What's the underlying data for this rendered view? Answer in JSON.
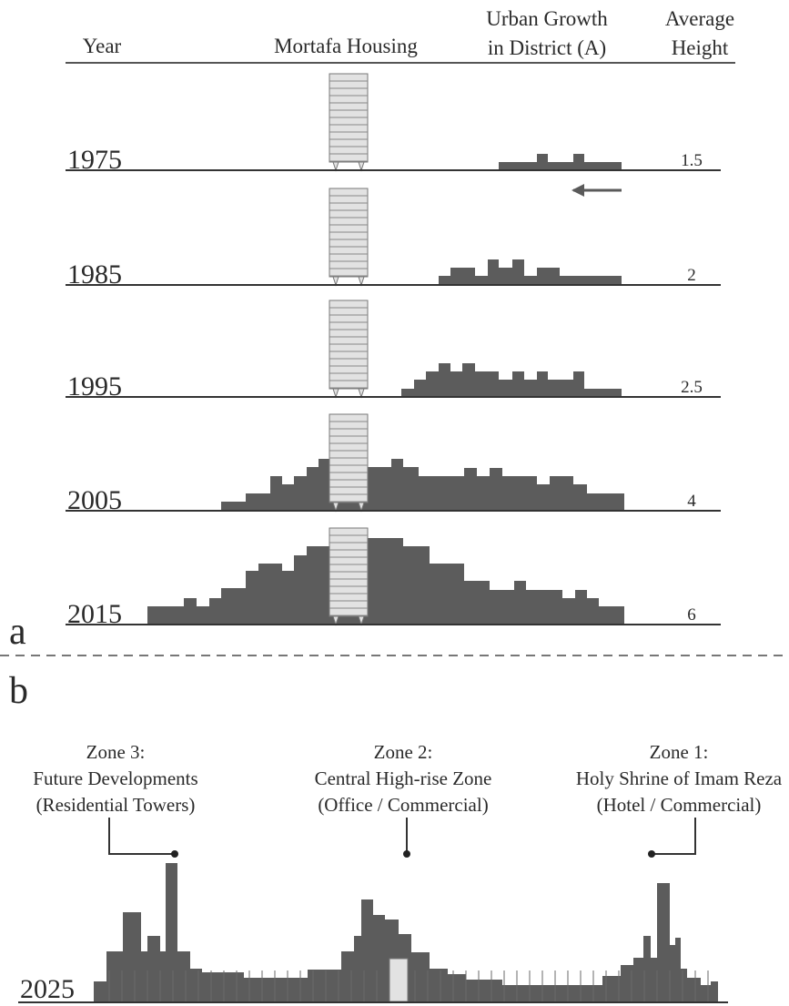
{
  "header": {
    "year": "Year",
    "housing": "Mortafa Housing",
    "growth": [
      "Urban Growth",
      "in District (A)"
    ],
    "height": [
      "Average",
      "Height"
    ]
  },
  "rows": [
    {
      "year": 1975,
      "height": 1.5
    },
    {
      "year": 1985,
      "height": 2
    },
    {
      "year": 1995,
      "height": 2.5
    },
    {
      "year": 2005,
      "height": 4
    },
    {
      "year": 2015,
      "height": 6
    }
  ],
  "section_a": "a",
  "section_b": "b",
  "zones": [
    {
      "lines": [
        "Zone 3:",
        "Future Developments",
        "(Residential Towers)"
      ]
    },
    {
      "lines": [
        "Zone 2:",
        "Central High-rise Zone",
        "(Office / Commercial)"
      ]
    },
    {
      "lines": [
        "Zone 1:",
        "Holy Shrine of Imam Reza",
        "(Hotel / Commercial)"
      ]
    }
  ],
  "future_year": "2025"
}
